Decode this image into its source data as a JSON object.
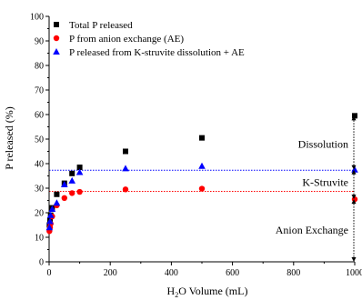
{
  "chart_data": {
    "type": "scatter",
    "xlabel_main": "H",
    "xlabel_sub": "2",
    "xlabel_rest": "O Volume (mL)",
    "ylabel": "P released (%)",
    "xlim": [
      0,
      1000
    ],
    "ylim": [
      0,
      100
    ],
    "x_ticks": [
      0,
      200,
      400,
      600,
      800,
      1000
    ],
    "y_ticks": [
      0,
      10,
      20,
      30,
      40,
      50,
      60,
      70,
      80,
      90,
      100
    ],
    "grid": false,
    "legend_position": "top-left",
    "series": [
      {
        "name": "Total P released",
        "marker": "square",
        "color": "#000000",
        "points": [
          [
            1,
            15
          ],
          [
            3,
            17
          ],
          [
            5,
            19
          ],
          [
            10,
            22
          ],
          [
            25,
            27.5
          ],
          [
            50,
            32
          ],
          [
            75,
            36
          ],
          [
            100,
            38.5
          ],
          [
            250,
            45
          ],
          [
            500,
            50.5
          ],
          [
            1000,
            59.5
          ]
        ]
      },
      {
        "name": "P from anion exchange (AE)",
        "marker": "circle",
        "color": "#ff0000",
        "points": [
          [
            1,
            12.5
          ],
          [
            3,
            14
          ],
          [
            5,
            15.5
          ],
          [
            10,
            18.5
          ],
          [
            25,
            23
          ],
          [
            50,
            26
          ],
          [
            75,
            28
          ],
          [
            100,
            28.5
          ],
          [
            250,
            29.5
          ],
          [
            500,
            29.8
          ],
          [
            1000,
            25.5
          ]
        ]
      },
      {
        "name": "P released from K-struvite dissolution + AE",
        "marker": "triangle",
        "color": "#0000ff",
        "points": [
          [
            1,
            14
          ],
          [
            3,
            16.5
          ],
          [
            5,
            19
          ],
          [
            10,
            21.5
          ],
          [
            25,
            24
          ],
          [
            50,
            31.5
          ],
          [
            75,
            33
          ],
          [
            100,
            36.5
          ],
          [
            250,
            38
          ],
          [
            500,
            39
          ],
          [
            1000,
            37.5
          ]
        ]
      }
    ],
    "reference_lines": [
      {
        "y": 37.3,
        "color": "#0000ff"
      },
      {
        "y": 28.7,
        "color": "#ff0000"
      }
    ],
    "annotations": [
      {
        "text": "Dissolution",
        "y": 48
      },
      {
        "text": "K-Struvite",
        "y": 32.5
      },
      {
        "text": "Anion Exchange",
        "y": 13
      }
    ],
    "arrow_marks": [
      59.5,
      37.5,
      25.5,
      0
    ]
  }
}
